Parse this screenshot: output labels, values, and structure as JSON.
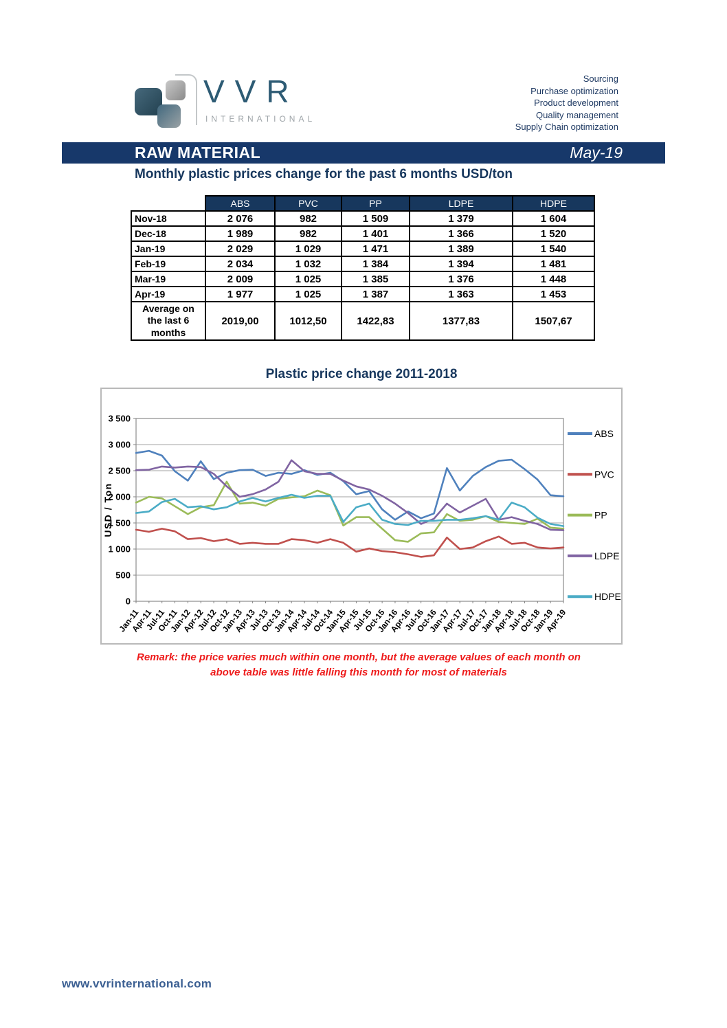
{
  "header": {
    "logo": {
      "brand": "VVR",
      "subtitle": "INTERNATIONAL"
    },
    "services": [
      "Sourcing",
      "Purchase optimization",
      "Product development",
      "Quality management",
      "Supply Chain optimization"
    ]
  },
  "banner": {
    "title": "RAW MATERIAL",
    "date": "May-19"
  },
  "table_section": {
    "title": "Monthly plastic prices change for the past 6 months USD/ton",
    "columns": [
      "ABS",
      "PVC",
      "PP",
      "LDPE",
      "HDPE"
    ],
    "rows": [
      {
        "label": "Nov-18",
        "values": [
          "2 076",
          "982",
          "1 509",
          "1 379",
          "1 604"
        ]
      },
      {
        "label": "Dec-18",
        "values": [
          "1 989",
          "982",
          "1 401",
          "1 366",
          "1 520"
        ]
      },
      {
        "label": "Jan-19",
        "values": [
          "2 029",
          "1 029",
          "1 471",
          "1 389",
          "1 540"
        ]
      },
      {
        "label": "Feb-19",
        "values": [
          "2 034",
          "1 032",
          "1 384",
          "1 394",
          "1 481"
        ]
      },
      {
        "label": "Mar-19",
        "values": [
          "2 009",
          "1 025",
          "1 385",
          "1 376",
          "1 448"
        ]
      },
      {
        "label": "Apr-19",
        "values": [
          "1 977",
          "1 025",
          "1 387",
          "1 363",
          "1 453"
        ]
      }
    ],
    "average": {
      "label": "Average on the last 6 months",
      "values": [
        "2019,00",
        "1012,50",
        "1422,83",
        "1377,83",
        "1507,67"
      ]
    }
  },
  "chart_section": {
    "remark_lines": [
      "Remark: the price varies much within one month, but the average values of each month on",
      "above table was little falling this month for most of materials"
    ]
  },
  "chart_data": {
    "type": "line",
    "title": "Plastic price change 2011-2018",
    "ylabel": "USD / Ton",
    "ylim": [
      0,
      3500
    ],
    "ytick_step": 500,
    "grid": true,
    "legend_position": "right",
    "categories": [
      "Jan-11",
      "Apr-11",
      "Jul-11",
      "Oct-11",
      "Jan-12",
      "Apr-12",
      "Jul-12",
      "Oct-12",
      "Jan-13",
      "Apr-13",
      "Jul-13",
      "Oct-13",
      "Jan-14",
      "Apr-14",
      "Jul-14",
      "Oct-14",
      "Jan-15",
      "Apr-15",
      "Jul-15",
      "Oct-15",
      "Jan-16",
      "Apr-16",
      "Jul-16",
      "Oct-16",
      "Jan-17",
      "Apr-17",
      "Jul-17",
      "Oct-17",
      "Jan-18",
      "Apr-18",
      "Jul-18",
      "Oct-18",
      "Jan-19",
      "Apr-19"
    ],
    "series": [
      {
        "name": "ABS",
        "color": "#4F81BD",
        "values": [
          2840,
          2880,
          2790,
          2490,
          2310,
          2680,
          2340,
          2460,
          2510,
          2520,
          2400,
          2460,
          2440,
          2510,
          2420,
          2460,
          2300,
          2050,
          2110,
          1760,
          1560,
          1720,
          1590,
          1680,
          2550,
          2120,
          2400,
          2570,
          2690,
          2710,
          2530,
          2330,
          2030,
          2010
        ]
      },
      {
        "name": "PVC",
        "color": "#C0504D",
        "values": [
          1370,
          1330,
          1390,
          1340,
          1190,
          1210,
          1150,
          1190,
          1100,
          1120,
          1100,
          1100,
          1190,
          1170,
          1120,
          1190,
          1120,
          950,
          1010,
          960,
          940,
          900,
          850,
          880,
          1220,
          1000,
          1030,
          1150,
          1240,
          1100,
          1120,
          1030,
          1010,
          1030
        ]
      },
      {
        "name": "PP",
        "color": "#9BBB59",
        "values": [
          1890,
          2000,
          1970,
          1820,
          1670,
          1800,
          1840,
          2290,
          1870,
          1890,
          1830,
          1960,
          1990,
          2010,
          2120,
          2030,
          1450,
          1610,
          1610,
          1390,
          1170,
          1140,
          1300,
          1320,
          1670,
          1540,
          1560,
          1630,
          1520,
          1500,
          1480,
          1580,
          1410,
          1390
        ]
      },
      {
        "name": "LDPE",
        "color": "#8064A2",
        "values": [
          2510,
          2520,
          2580,
          2560,
          2580,
          2570,
          2440,
          2200,
          2000,
          2050,
          2140,
          2290,
          2700,
          2490,
          2440,
          2440,
          2310,
          2200,
          2140,
          2020,
          1870,
          1690,
          1480,
          1580,
          1870,
          1700,
          1830,
          1960,
          1560,
          1610,
          1540,
          1480,
          1370,
          1360
        ]
      },
      {
        "name": "HDPE",
        "color": "#4BACC6",
        "values": [
          1690,
          1720,
          1900,
          1960,
          1800,
          1820,
          1760,
          1800,
          1910,
          1980,
          1910,
          1980,
          2040,
          1980,
          2020,
          2020,
          1520,
          1800,
          1870,
          1560,
          1480,
          1460,
          1540,
          1540,
          1560,
          1560,
          1590,
          1630,
          1560,
          1890,
          1800,
          1600,
          1480,
          1440
        ]
      }
    ]
  },
  "footer": {
    "url": "www.vvrinternational.com"
  }
}
